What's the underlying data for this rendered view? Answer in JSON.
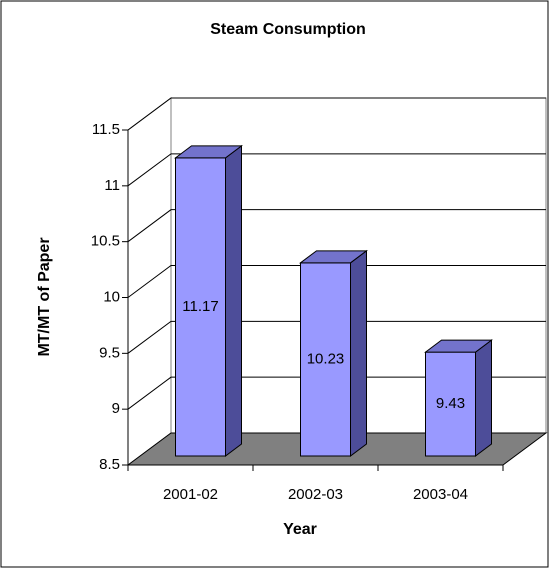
{
  "chart_data": {
    "type": "bar3d",
    "title": "Steam Consumption",
    "categories": [
      "2001-02",
      "2002-03",
      "2003-04"
    ],
    "values": [
      11.17,
      10.23,
      9.43
    ],
    "color": "#9999ff",
    "ylim": [
      8.5,
      11.5
    ],
    "yticks": [
      8.5,
      9,
      9.5,
      10,
      10.5,
      11,
      11.5
    ],
    "grid": true,
    "y_label": "MT/MT of Paper",
    "x_label": "Year"
  }
}
